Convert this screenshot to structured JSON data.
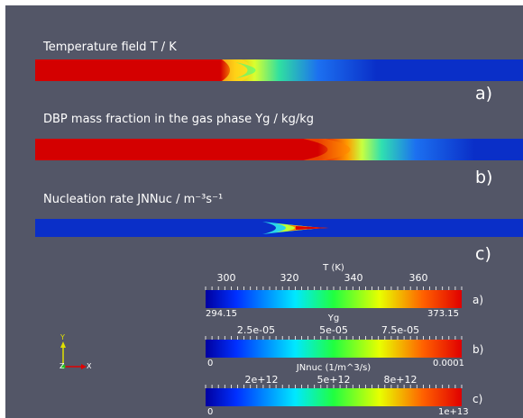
{
  "panels": [
    {
      "caption": "Temperature field T / K",
      "letter": "a)"
    },
    {
      "caption": "DBP mass fraction in the gas phase Yg / kg/kg",
      "letter": "b)"
    },
    {
      "caption": "Nucleation rate JNNuc / m⁻³s⁻¹",
      "letter": "c)"
    }
  ],
  "colorbars": [
    {
      "title": "T (K)",
      "ticks": [
        "300",
        "320",
        "340",
        "360"
      ],
      "min": "294.15",
      "max": "373.15",
      "letter": "a)"
    },
    {
      "title": "Yg",
      "ticks": [
        "2.5e-05",
        "5e-05",
        "7.5e-05"
      ],
      "min": "0",
      "max": "0.0001",
      "letter": "b)"
    },
    {
      "title": "JNnuc (1/m^3/s)",
      "ticks": [
        "2e+12",
        "5e+12",
        "8e+12"
      ],
      "min": "0",
      "max": "1e+13",
      "letter": "c)"
    }
  ],
  "axes": {
    "y": "Y",
    "z": "Z",
    "x": "X"
  },
  "colors": {
    "background": "#535667",
    "hot": "#d40000",
    "cold": "#0a2fc8"
  }
}
